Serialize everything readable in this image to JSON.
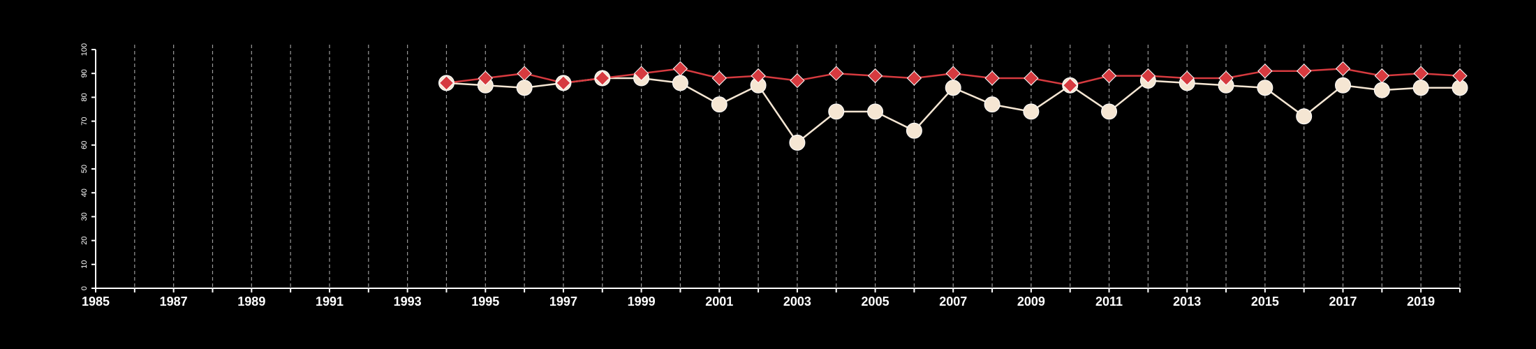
{
  "chart_data": {
    "type": "line",
    "title": "",
    "xlabel": "",
    "ylabel": "",
    "xlim": [
      1985,
      2020
    ],
    "ylim": [
      0,
      100
    ],
    "x_ticks": [
      1985,
      1986,
      1987,
      1988,
      1989,
      1990,
      1991,
      1992,
      1993,
      1994,
      1995,
      1996,
      1997,
      1998,
      1999,
      2000,
      2001,
      2002,
      2003,
      2004,
      2005,
      2006,
      2007,
      2008,
      2009,
      2010,
      2011,
      2012,
      2013,
      2014,
      2015,
      2016,
      2017,
      2018,
      2019,
      2020
    ],
    "x_tick_labels": [
      "1985",
      "1987",
      "1989",
      "1991",
      "1993",
      "1995",
      "1997",
      "1999",
      "2001",
      "2003",
      "2005",
      "2007",
      "2009",
      "2011",
      "2013",
      "2015",
      "2017",
      "2019"
    ],
    "y_ticks": [
      0,
      10,
      20,
      30,
      40,
      50,
      60,
      70,
      80,
      90,
      100
    ],
    "grid": "vertical dashed",
    "background": "#000000",
    "x": [
      1994,
      1995,
      1996,
      1997,
      1998,
      1999,
      2000,
      2001,
      2002,
      2003,
      2004,
      2005,
      2006,
      2007,
      2008,
      2009,
      2010,
      2011,
      2012,
      2013,
      2014,
      2015,
      2016,
      2017,
      2018,
      2019,
      2020
    ],
    "series": [
      {
        "color": "#d63a3f",
        "marker": "diamond",
        "values": [
          86,
          88,
          90,
          86,
          88,
          90,
          92,
          88,
          89,
          87,
          90,
          89,
          88,
          90,
          88,
          88,
          85,
          89,
          89,
          88,
          88,
          91,
          91,
          92,
          89,
          90,
          89
        ]
      },
      {
        "color": "#f5e6d3",
        "marker": "circle",
        "values": [
          86,
          85,
          84,
          86,
          88,
          88,
          86,
          77,
          85,
          61,
          74,
          74,
          66,
          84,
          77,
          74,
          85,
          74,
          87,
          86,
          85,
          84,
          72,
          85,
          83,
          84,
          84
        ]
      }
    ]
  }
}
